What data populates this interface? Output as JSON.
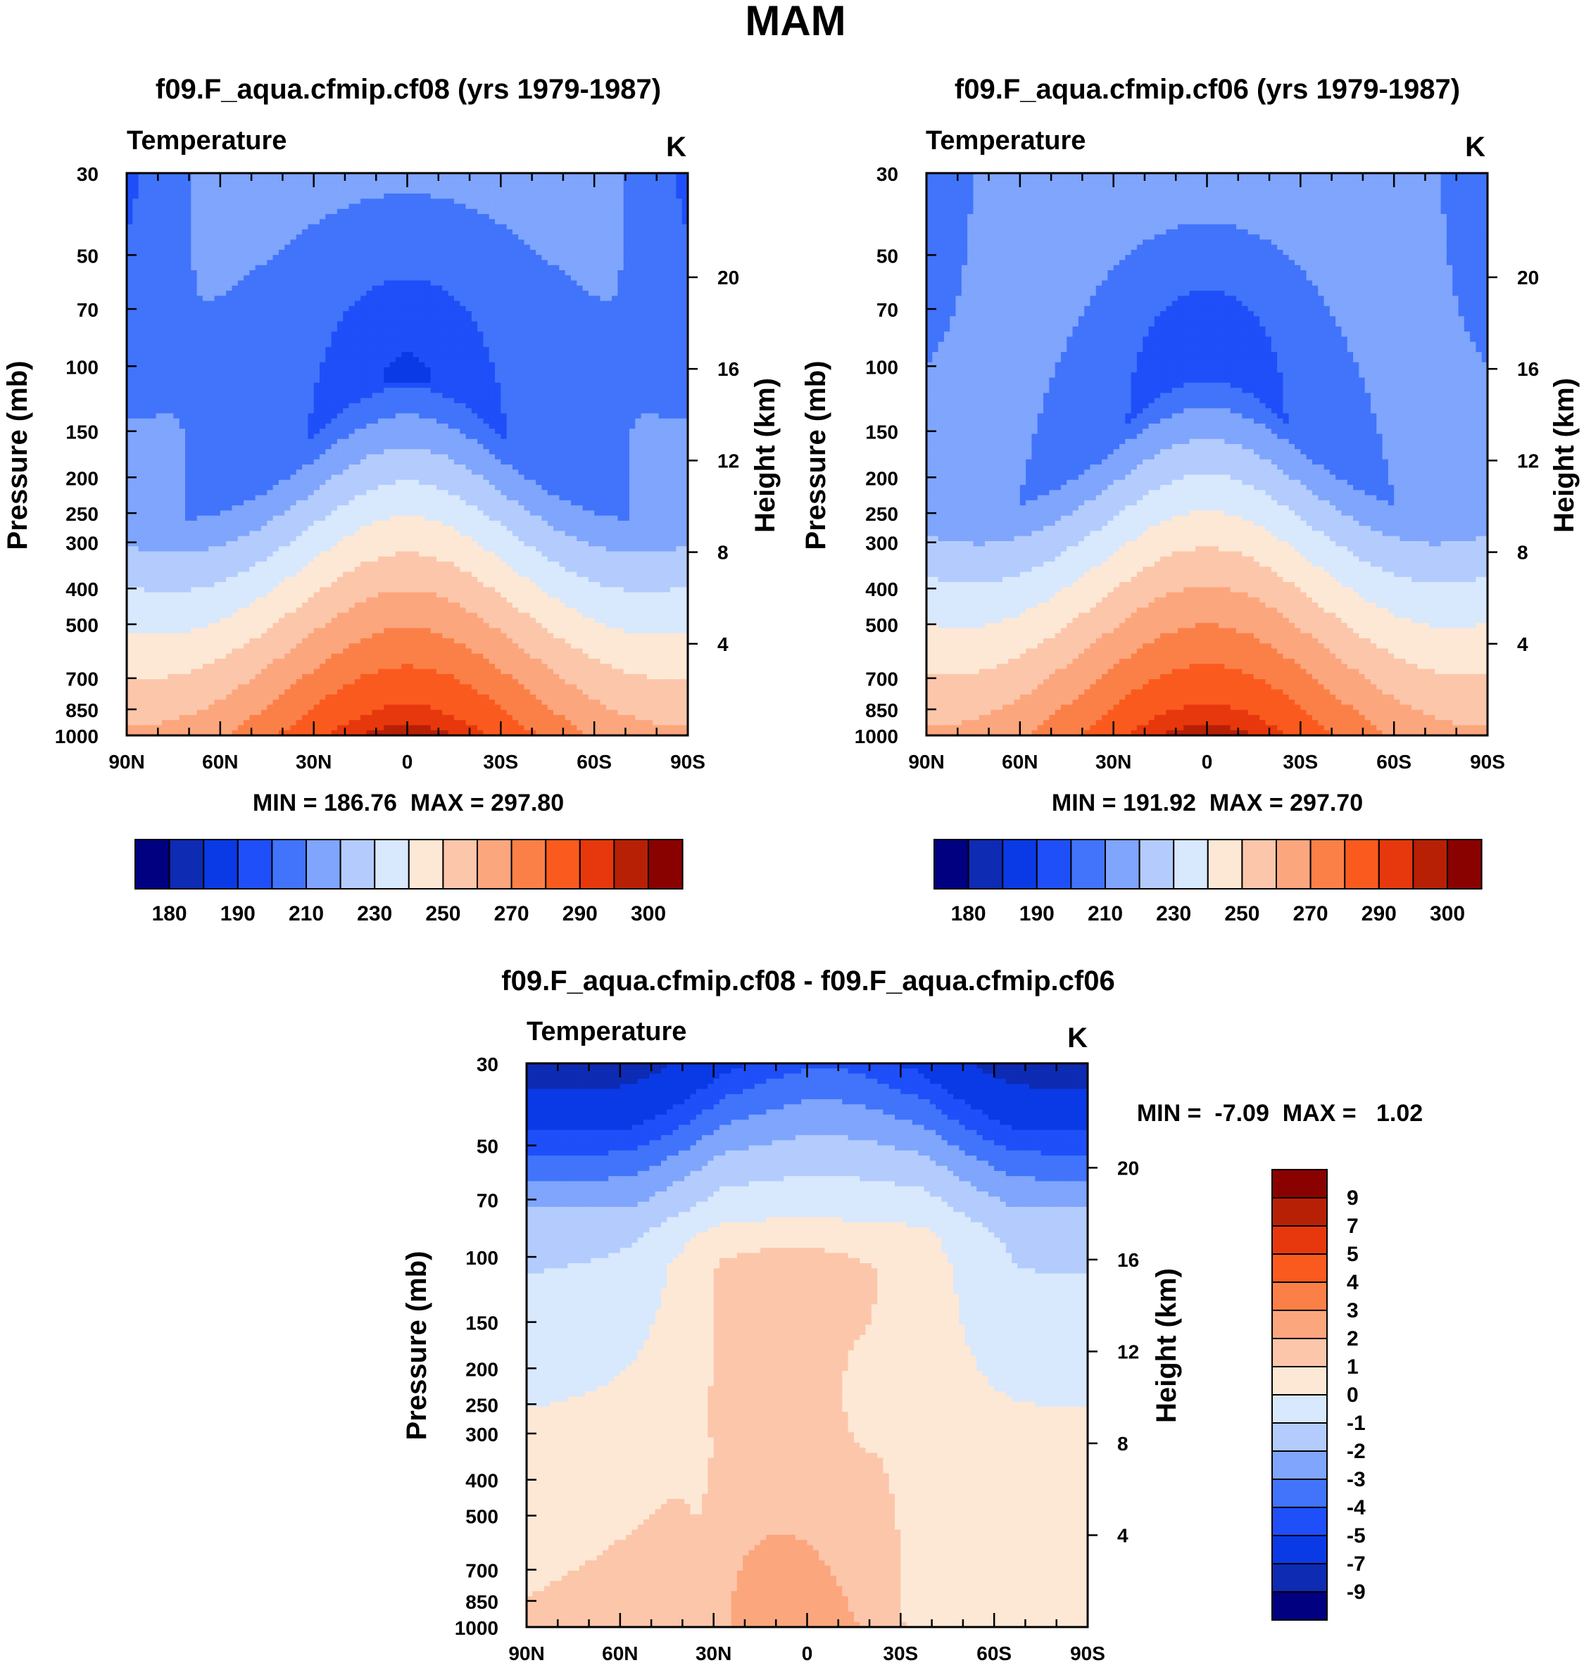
{
  "figure_title": "MAM",
  "colors": {
    "abs_palette": [
      "#000080",
      "#0d2bb3",
      "#0a3ae6",
      "#1f4ff8",
      "#4174fb",
      "#7fa5fc",
      "#b3ccfd",
      "#d8e8fd",
      "#fde8d5",
      "#fcc6aa",
      "#fca67e",
      "#fb8048",
      "#fa5a1e",
      "#e6380c",
      "#b82006",
      "#8a0200"
    ],
    "diff_palette": [
      "#000080",
      "#0d2bb3",
      "#0a3ae6",
      "#1f4ff8",
      "#4174fb",
      "#7fa5fc",
      "#b3ccfd",
      "#d8e8fd",
      "#fde8d5",
      "#fcc6aa",
      "#fca67e",
      "#fb8048",
      "#fa5a1e",
      "#e6380c",
      "#b82006",
      "#8a0200"
    ]
  },
  "chart_data": [
    {
      "id": "cf08",
      "type": "heatmap",
      "title": "f09.F_aqua.cfmip.cf08 (yrs 1979-1987)",
      "left_label": "Temperature",
      "right_label": "K",
      "ylabel": "Pressure (mb)",
      "y2label": "Height (km)",
      "x_ticks": [
        "90N",
        "60N",
        "30N",
        "0",
        "30S",
        "60S",
        "90S"
      ],
      "y_ticks": [
        "30",
        "50",
        "70",
        "100",
        "150",
        "200",
        "250",
        "300",
        "400",
        "500",
        "700",
        "850",
        "1000"
      ],
      "y_tick_values": [
        30,
        50,
        70,
        100,
        150,
        200,
        250,
        300,
        400,
        500,
        700,
        850,
        1000
      ],
      "y2_ticks": [
        "20",
        "16",
        "12",
        "8",
        "4"
      ],
      "y2_tick_values": [
        20,
        16,
        12,
        8,
        4
      ],
      "stats": "MIN = 186.76  MAX = 297.80",
      "min": 186.76,
      "max": 297.8,
      "colorbar_labels": [
        "180",
        "190",
        "210",
        "230",
        "250",
        "270",
        "290",
        "300"
      ],
      "surface_temp_eq": 297.8,
      "surface_temp_pole": 262,
      "tropopause_temp": 198,
      "upper_temp_pole": 197,
      "tropo_core_temp": 193
    },
    {
      "id": "cf06",
      "type": "heatmap",
      "title": "f09.F_aqua.cfmip.cf06 (yrs 1979-1987)",
      "left_label": "Temperature",
      "right_label": "K",
      "ylabel": "Pressure (mb)",
      "y2label": "Height (km)",
      "x_ticks": [
        "90N",
        "60N",
        "30N",
        "0",
        "30S",
        "60S",
        "90S"
      ],
      "y_ticks": [
        "30",
        "50",
        "70",
        "100",
        "150",
        "200",
        "250",
        "300",
        "400",
        "500",
        "700",
        "850",
        "1000"
      ],
      "y_tick_values": [
        30,
        50,
        70,
        100,
        150,
        200,
        250,
        300,
        400,
        500,
        700,
        850,
        1000
      ],
      "y2_ticks": [
        "20",
        "16",
        "12",
        "8",
        "4"
      ],
      "y2_tick_values": [
        20,
        16,
        12,
        8,
        4
      ],
      "stats": "MIN = 191.92  MAX = 297.70",
      "min": 191.92,
      "max": 297.7,
      "colorbar_labels": [
        "180",
        "190",
        "210",
        "230",
        "250",
        "270",
        "290",
        "300"
      ],
      "surface_temp_eq": 297.7,
      "surface_temp_pole": 262,
      "tropopause_temp": 201,
      "upper_temp_pole": 200,
      "tropo_core_temp": 194
    },
    {
      "id": "diff",
      "type": "heatmap",
      "title": "f09.F_aqua.cfmip.cf08 - f09.F_aqua.cfmip.cf06",
      "left_label": "Temperature",
      "right_label": "K",
      "ylabel": "Pressure (mb)",
      "y2label": "Height (km)",
      "x_ticks": [
        "90N",
        "60N",
        "30N",
        "0",
        "30S",
        "60S",
        "90S"
      ],
      "y_ticks": [
        "30",
        "50",
        "70",
        "100",
        "150",
        "200",
        "250",
        "300",
        "400",
        "500",
        "700",
        "850",
        "1000"
      ],
      "y_tick_values": [
        30,
        50,
        70,
        100,
        150,
        200,
        250,
        300,
        400,
        500,
        700,
        850,
        1000
      ],
      "y2_ticks": [
        "20",
        "16",
        "12",
        "8",
        "4"
      ],
      "y2_tick_values": [
        20,
        16,
        12,
        8,
        4
      ],
      "stats": "MIN =  -7.09  MAX =   1.02",
      "min": -7.09,
      "max": 1.02,
      "colorbar_labels": [
        "9",
        "7",
        "5",
        "4",
        "3",
        "2",
        "1",
        "0",
        "-1",
        "-2",
        "-3",
        "-4",
        "-5",
        "-7",
        "-9"
      ]
    }
  ]
}
